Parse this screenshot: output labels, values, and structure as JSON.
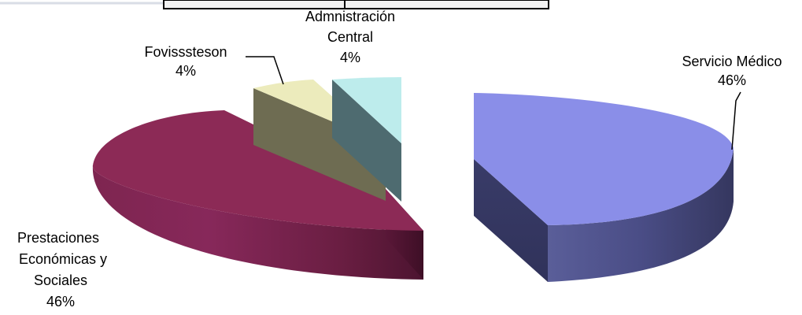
{
  "chart_data": {
    "type": "pie",
    "title": "",
    "slices": [
      {
        "label": "Servicio Médico",
        "value": 46,
        "display": "46%",
        "color": "#8a8ee8"
      },
      {
        "label": "Prestaciones Económicas y Sociales",
        "value": 46,
        "display": "46%",
        "color": "#8c2a56"
      },
      {
        "label": "Fovisssteson",
        "value": 4,
        "display": "4%",
        "color": "#ecebbc"
      },
      {
        "label": "Admnistración Central",
        "value": 4,
        "display": "4%",
        "color": "#bdecec"
      }
    ],
    "style": "3d-exploded"
  },
  "labels": {
    "servicio": {
      "lines": [
        "Servicio Médico"
      ],
      "pct": "46%"
    },
    "prestaciones": {
      "lines": [
        "Prestaciones",
        "Económicas y",
        "Sociales"
      ],
      "pct": "46%"
    },
    "fovissste": {
      "lines": [
        "Fovisssteson"
      ],
      "pct": "4%"
    },
    "admin": {
      "lines": [
        "Admnistración",
        "Central"
      ],
      "pct": "4%"
    }
  }
}
